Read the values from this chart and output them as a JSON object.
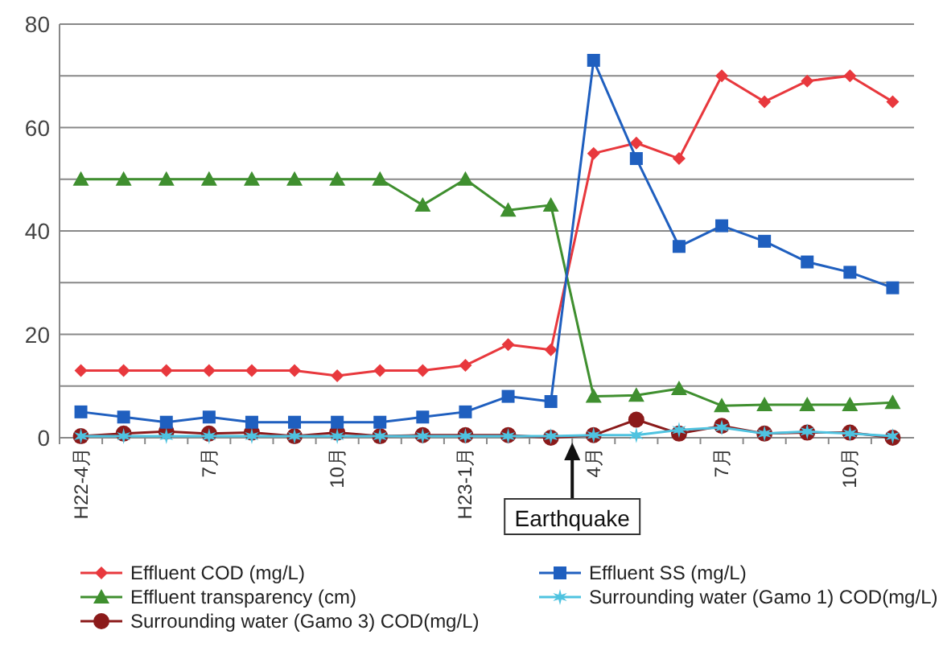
{
  "chart_data": {
    "type": "line",
    "categories": [
      "H22-4月",
      null,
      null,
      "7月",
      null,
      null,
      "10月",
      null,
      null,
      "H23-1月",
      null,
      null,
      "4月",
      null,
      null,
      "7月",
      null,
      null,
      "10月",
      null
    ],
    "series": [
      {
        "name": "Effluent COD (mg/L)",
        "color": "#e8383d",
        "marker": "diamond",
        "values": [
          13,
          13,
          13,
          13,
          13,
          13,
          12,
          13,
          13,
          14,
          18,
          17,
          55,
          57,
          54,
          70,
          65,
          69,
          70,
          65
        ]
      },
      {
        "name": "Effluent transparency (cm)",
        "color": "#3f8f2f",
        "marker": "triangle",
        "values": [
          50,
          50,
          50,
          50,
          50,
          50,
          50,
          50,
          45,
          50,
          44,
          45,
          8,
          8.2,
          9.5,
          6.2,
          6.4,
          6.4,
          6.4,
          6.8
        ]
      },
      {
        "name": "Surrounding water (Gamo 3) COD(mg/L)",
        "color": "#8b1a1a",
        "marker": "circle",
        "values": [
          0.3,
          0.8,
          1.2,
          0.8,
          1,
          0.3,
          1,
          0.3,
          0.5,
          0.5,
          0.5,
          0,
          0.5,
          3.5,
          0.8,
          2.3,
          0.8,
          1,
          1,
          0
        ]
      },
      {
        "name": "Effluent SS (mg/L)",
        "color": "#1f5fbf",
        "marker": "square",
        "values": [
          5,
          4,
          3,
          4,
          3,
          3,
          3,
          3,
          4,
          5,
          8,
          7,
          73,
          54,
          37,
          41,
          38,
          34,
          32,
          29
        ]
      },
      {
        "name": "Surrounding water (Gamo 1) COD(mg/L)",
        "color": "#4fc3e0",
        "marker": "cross",
        "values": [
          0.3,
          0.3,
          0.3,
          0.3,
          0.3,
          0.3,
          0.3,
          0.3,
          0.3,
          0.3,
          0.3,
          0.3,
          0.5,
          0.5,
          1.5,
          2,
          0.8,
          1.2,
          0.8,
          0.3
        ]
      }
    ],
    "ylim": [
      0,
      80
    ],
    "yticks": [
      0,
      {
        "value": 10,
        "label": null
      },
      20,
      {
        "value": 30,
        "label": null
      },
      40,
      {
        "value": 50,
        "label": null
      },
      60,
      {
        "value": 70,
        "label": null
      },
      80
    ],
    "grid": "y",
    "legend": "bottom",
    "annotations": [
      "Earthquake"
    ]
  }
}
